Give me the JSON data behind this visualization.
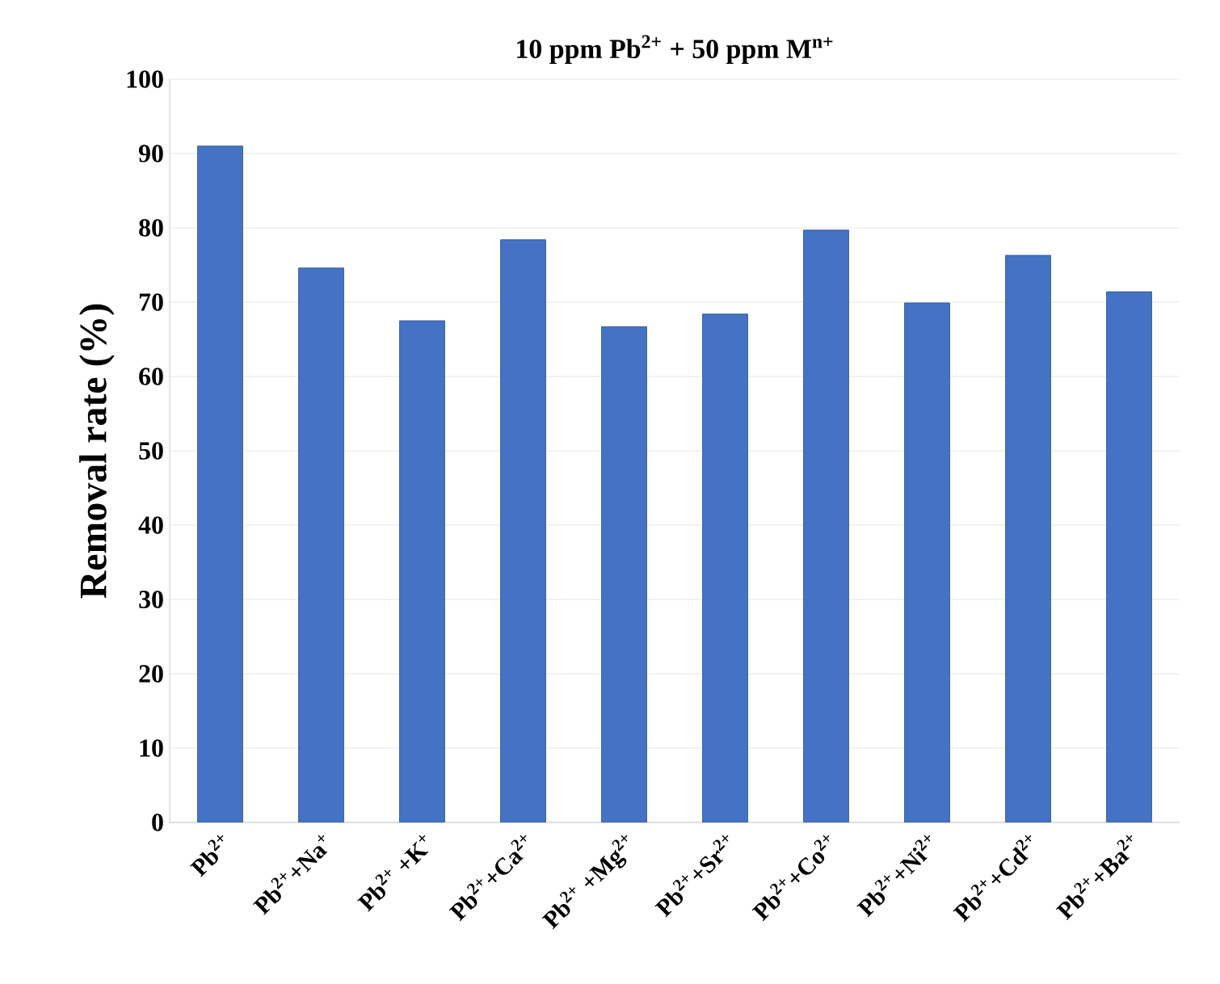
{
  "chart_data": {
    "type": "bar",
    "title": "10 ppm Pb$^{2+}$ + 50 ppm M$^{n+}$",
    "ylabel": "Removal rate (%)",
    "categories": [
      "Pb$^{2+}$",
      "Pb$^{2+}$+Na$^{+}$",
      "Pb$^{2+}$ +K$^{+}$",
      "Pb$^{2+}$+Ca$^{2+}$",
      "Pb$^{2+}$ +Mg$^{2+}$",
      "Pb$^{2+}$+Sr$^{2+}$",
      "Pb$^{2+}$+Co$^{2+}$",
      "Pb$^{2+}$+Ni$^{2+}$",
      "Pb$^{2+}$+Cd$^{2+}$",
      "Pb$^{2+}$+Ba$^{2+}$"
    ],
    "values": [
      91,
      74.6,
      67.5,
      78.4,
      66.7,
      68.4,
      79.7,
      69.9,
      76.3,
      71.4
    ],
    "color": "#4472c4",
    "ylim": [
      0,
      100
    ],
    "yticks": [
      0,
      10,
      20,
      30,
      40,
      50,
      60,
      70,
      80,
      90,
      100
    ],
    "grid": "y"
  }
}
